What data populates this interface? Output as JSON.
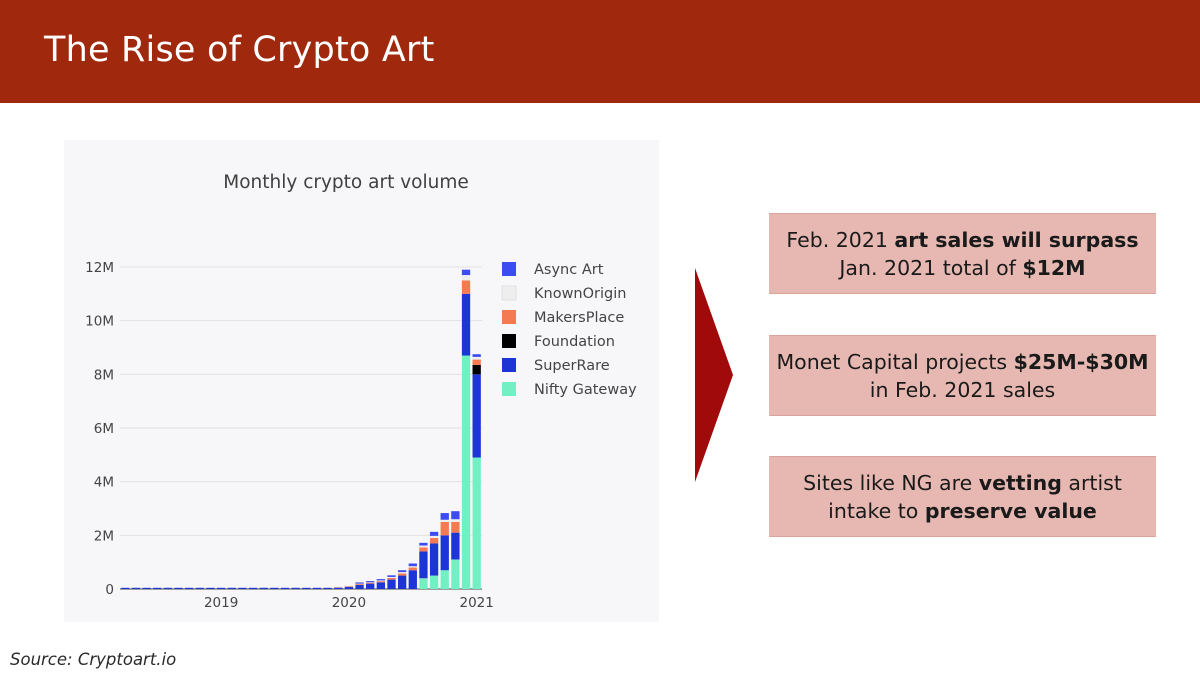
{
  "slide": {
    "title": "The Rise of Crypto Art",
    "source": "Source: Cryptoart.io"
  },
  "callouts": [
    {
      "parts": [
        {
          "text": "Feb. 2021 ",
          "bold": false
        },
        {
          "text": "art sales will surpass",
          "bold": true
        },
        {
          "text": " Jan. 2021 total of ",
          "bold": false
        },
        {
          "text": "$12M",
          "bold": true
        }
      ]
    },
    {
      "parts": [
        {
          "text": "Monet Capital projects ",
          "bold": false
        },
        {
          "text": "$25M-$30M",
          "bold": true
        },
        {
          "text": " in Feb. 2021 sales",
          "bold": false
        }
      ]
    },
    {
      "parts": [
        {
          "text": "Sites like NG are ",
          "bold": false
        },
        {
          "text": "vetting",
          "bold": true
        },
        {
          "text": " artist intake to ",
          "bold": false
        },
        {
          "text": "preserve value",
          "bold": true
        }
      ]
    }
  ],
  "colors": {
    "header": "#a0290d",
    "arrow": "#a00a0a",
    "callout_bg": "#e6b8b1"
  },
  "chart_data": {
    "type": "bar",
    "stacked": true,
    "title": "Monthly crypto art volume",
    "xlabel": "",
    "ylabel": "",
    "ylim": [
      0,
      12000000
    ],
    "yticks": [
      0,
      2000000,
      4000000,
      6000000,
      8000000,
      10000000,
      12000000
    ],
    "ytick_labels": [
      "0",
      "2M",
      "4M",
      "6M",
      "8M",
      "10M",
      "12M"
    ],
    "xtick_labels": [
      {
        "label": "2019",
        "index": 9
      },
      {
        "label": "2020",
        "index": 21
      },
      {
        "label": "2021",
        "index": 33
      }
    ],
    "grid": true,
    "legend_position": "top-right",
    "categories": [
      "2018-05",
      "2018-06",
      "2018-07",
      "2018-08",
      "2018-09",
      "2018-10",
      "2018-11",
      "2018-12",
      "2019-01",
      "2019-02",
      "2019-03",
      "2019-04",
      "2019-05",
      "2019-06",
      "2019-07",
      "2019-08",
      "2019-09",
      "2019-10",
      "2019-11",
      "2019-12",
      "2020-01",
      "2020-02",
      "2020-03",
      "2020-04",
      "2020-05",
      "2020-06",
      "2020-07",
      "2020-08",
      "2020-09",
      "2020-10",
      "2020-11",
      "2020-12",
      "2021-01",
      "2021-02"
    ],
    "series": [
      {
        "name": "Nifty Gateway",
        "color": "#72f0c4",
        "values": [
          0,
          0,
          0,
          0,
          0,
          0,
          0,
          0,
          0,
          0,
          0,
          0,
          0,
          0,
          0,
          0,
          0,
          0,
          0,
          0,
          0,
          0,
          0,
          0,
          0,
          0,
          0,
          0,
          400000,
          500000,
          700000,
          1100000,
          8700000,
          4900000
        ]
      },
      {
        "name": "SuperRare",
        "color": "#1e35d6",
        "values": [
          10000,
          10000,
          10000,
          10000,
          10000,
          10000,
          8000,
          8000,
          8000,
          8000,
          8000,
          8000,
          8000,
          8000,
          8000,
          8000,
          8000,
          10000,
          10000,
          10000,
          50000,
          80000,
          150000,
          200000,
          250000,
          350000,
          500000,
          700000,
          1000000,
          1200000,
          1300000,
          1000000,
          2300000,
          3100000
        ]
      },
      {
        "name": "Foundation",
        "color": "#000000",
        "values": [
          0,
          0,
          0,
          0,
          0,
          0,
          0,
          0,
          0,
          0,
          0,
          0,
          0,
          0,
          0,
          0,
          0,
          0,
          0,
          0,
          0,
          0,
          0,
          0,
          0,
          0,
          0,
          0,
          0,
          0,
          0,
          0,
          0,
          350000
        ]
      },
      {
        "name": "MakersPlace",
        "color": "#f47a52",
        "values": [
          0,
          0,
          0,
          0,
          0,
          0,
          0,
          0,
          0,
          0,
          0,
          0,
          0,
          0,
          0,
          0,
          0,
          0,
          0,
          0,
          10000,
          20000,
          30000,
          30000,
          40000,
          60000,
          80000,
          100000,
          150000,
          200000,
          500000,
          400000,
          500000,
          200000
        ]
      },
      {
        "name": "KnownOrigin",
        "color": "#eeeeee",
        "values": [
          0,
          0,
          0,
          0,
          0,
          0,
          0,
          0,
          0,
          0,
          0,
          0,
          0,
          0,
          0,
          0,
          0,
          0,
          0,
          0,
          5000,
          10000,
          20000,
          20000,
          30000,
          40000,
          50000,
          50000,
          70000,
          80000,
          80000,
          100000,
          200000,
          100000
        ]
      },
      {
        "name": "Async Art",
        "color": "#3b4cf0",
        "values": [
          0,
          0,
          0,
          0,
          0,
          0,
          0,
          0,
          0,
          0,
          0,
          0,
          0,
          0,
          0,
          0,
          0,
          0,
          0,
          0,
          0,
          0,
          30000,
          40000,
          50000,
          60000,
          70000,
          100000,
          100000,
          150000,
          250000,
          300000,
          200000,
          100000
        ]
      }
    ]
  }
}
